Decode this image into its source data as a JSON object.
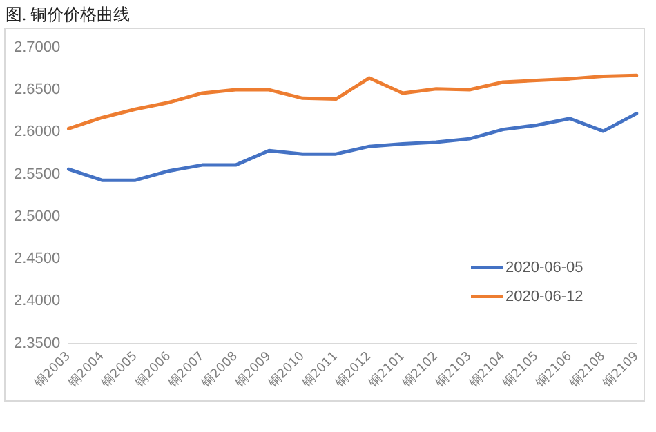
{
  "chart_data": {
    "type": "line",
    "title": "图. 铜价价格曲线",
    "categories": [
      "铜2003",
      "铜2004",
      "铜2005",
      "铜2006",
      "铜2007",
      "铜2008",
      "铜2009",
      "铜2010",
      "铜2011",
      "铜2012",
      "铜2101",
      "铜2102",
      "铜2103",
      "铜2104",
      "铜2105",
      "铜2106",
      "铜2108",
      "铜2109"
    ],
    "series": [
      {
        "name": "2020-06-05",
        "color": "#4472c4",
        "values": [
          2.556,
          2.543,
          2.543,
          2.554,
          2.561,
          2.561,
          2.578,
          2.574,
          2.574,
          2.583,
          2.586,
          2.588,
          2.592,
          2.603,
          2.608,
          2.616,
          2.601,
          2.622
        ]
      },
      {
        "name": "2020-06-12",
        "color": "#ed7d31",
        "values": [
          2.604,
          2.617,
          2.627,
          2.635,
          2.646,
          2.65,
          2.65,
          2.64,
          2.639,
          2.664,
          2.646,
          2.651,
          2.65,
          2.659,
          2.661,
          2.663,
          2.666,
          2.667
        ]
      }
    ],
    "ylim": [
      2.35,
      2.7
    ],
    "yticks": [
      {
        "value": 2.35,
        "label": "2.3500"
      },
      {
        "value": 2.4,
        "label": "2.4000"
      },
      {
        "value": 2.45,
        "label": "2.4500"
      },
      {
        "value": 2.5,
        "label": "2.5000"
      },
      {
        "value": 2.55,
        "label": "2.5500"
      },
      {
        "value": 2.6,
        "label": "2.6000"
      },
      {
        "value": 2.65,
        "label": "2.6500"
      },
      {
        "value": 2.7,
        "label": "2.7000"
      }
    ],
    "grid": false,
    "legend": "bottom right",
    "marker": "none",
    "line_style": "solid"
  }
}
